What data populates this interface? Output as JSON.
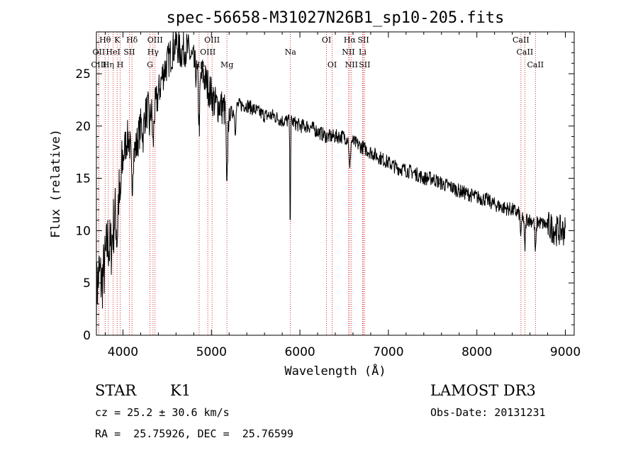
{
  "chart_data": {
    "type": "line",
    "title": "spec-56658-M31027N26B1_sp10-205.fits",
    "xlabel": "Wavelength (Å)",
    "ylabel": "Flux (relative)",
    "xlim": [
      3700,
      9100
    ],
    "ylim": [
      0,
      29
    ],
    "x_ticks": [
      4000,
      5000,
      6000,
      7000,
      8000,
      9000
    ],
    "x_tick_labels": [
      "4000",
      "5000",
      "6000",
      "7000",
      "8000",
      "9000"
    ],
    "y_ticks": [
      0,
      5,
      10,
      15,
      20,
      25
    ],
    "y_tick_labels": [
      "0",
      "5",
      "10",
      "15",
      "20",
      "25"
    ],
    "series": [
      {
        "name": "flux",
        "anchors": [
          [
            3700,
            4
          ],
          [
            3730,
            6
          ],
          [
            3760,
            5
          ],
          [
            3800,
            7
          ],
          [
            3830,
            9
          ],
          [
            3860,
            8
          ],
          [
            3900,
            11
          ],
          [
            3930,
            12
          ],
          [
            3960,
            14
          ],
          [
            3990,
            16
          ],
          [
            4020,
            18
          ],
          [
            4060,
            19
          ],
          [
            4100,
            17
          ],
          [
            4150,
            18
          ],
          [
            4200,
            20
          ],
          [
            4250,
            21
          ],
          [
            4300,
            22
          ],
          [
            4340,
            21
          ],
          [
            4400,
            23
          ],
          [
            4450,
            25
          ],
          [
            4500,
            26
          ],
          [
            4550,
            27
          ],
          [
            4600,
            28
          ],
          [
            4650,
            27
          ],
          [
            4700,
            27.5
          ],
          [
            4750,
            27
          ],
          [
            4800,
            26
          ],
          [
            4860,
            24
          ],
          [
            4900,
            25
          ],
          [
            4950,
            24
          ],
          [
            5000,
            23
          ],
          [
            5050,
            22
          ],
          [
            5100,
            22
          ],
          [
            5150,
            21.5
          ],
          [
            5200,
            21
          ],
          [
            5300,
            22
          ],
          [
            5400,
            22
          ],
          [
            5500,
            21.5
          ],
          [
            5600,
            21
          ],
          [
            5700,
            21
          ],
          [
            5800,
            20.5
          ],
          [
            5900,
            20.5
          ],
          [
            6000,
            20
          ],
          [
            6100,
            20
          ],
          [
            6200,
            19.5
          ],
          [
            6300,
            19
          ],
          [
            6400,
            19
          ],
          [
            6500,
            19
          ],
          [
            6600,
            18.5
          ],
          [
            6700,
            18
          ],
          [
            6800,
            17.5
          ],
          [
            6900,
            17
          ],
          [
            7000,
            16.5
          ],
          [
            7100,
            16
          ],
          [
            7200,
            15.8
          ],
          [
            7300,
            15.5
          ],
          [
            7400,
            15
          ],
          [
            7500,
            15
          ],
          [
            7600,
            14.5
          ],
          [
            7700,
            14.2
          ],
          [
            7800,
            13.8
          ],
          [
            7900,
            13.5
          ],
          [
            8000,
            13.2
          ],
          [
            8100,
            13
          ],
          [
            8200,
            12.5
          ],
          [
            8300,
            12.2
          ],
          [
            8400,
            12
          ],
          [
            8500,
            11.5
          ],
          [
            8600,
            11
          ],
          [
            8700,
            10.8
          ],
          [
            8800,
            10.5
          ],
          [
            8900,
            10
          ],
          [
            9000,
            10
          ]
        ],
        "absorption_dips": [
          [
            3934,
            3.0
          ],
          [
            3969,
            2.5
          ],
          [
            4102,
            3.0
          ],
          [
            4227,
            1.5
          ],
          [
            4300,
            2.0
          ],
          [
            4340,
            3.0
          ],
          [
            4861,
            4.0
          ],
          [
            5175,
            8.0
          ],
          [
            5270,
            2.0
          ],
          [
            5890,
            10.0
          ],
          [
            6563,
            3.0
          ],
          [
            8498,
            2.0
          ],
          [
            8542,
            3.0
          ],
          [
            8662,
            3.0
          ]
        ]
      }
    ],
    "spectral_lines": [
      {
        "label": "Hθ",
        "x": 3798,
        "row": 0
      },
      {
        "label": "K",
        "x": 3934,
        "row": 0
      },
      {
        "label": "Hδ",
        "x": 4102,
        "row": 0
      },
      {
        "label": "OIII",
        "x": 4363,
        "row": 0
      },
      {
        "label": "OIII",
        "x": 5007,
        "row": 0
      },
      {
        "label": "OI",
        "x": 6300,
        "row": 0
      },
      {
        "label": "Hα",
        "x": 6563,
        "row": 0
      },
      {
        "label": "SII",
        "x": 6717,
        "row": 0
      },
      {
        "label": "CaII",
        "x": 8498,
        "row": 0
      },
      {
        "label": "OII",
        "x": 3727,
        "row": 1
      },
      {
        "label": "HeI",
        "x": 3889,
        "row": 1
      },
      {
        "label": "SII",
        "x": 4072,
        "row": 1
      },
      {
        "label": "Hγ",
        "x": 4340,
        "row": 1
      },
      {
        "label": "OIII",
        "x": 4959,
        "row": 1
      },
      {
        "label": "Na",
        "x": 5893,
        "row": 1
      },
      {
        "label": "NII",
        "x": 6548,
        "row": 1
      },
      {
        "label": "Li",
        "x": 6708,
        "row": 1
      },
      {
        "label": "CaII",
        "x": 8542,
        "row": 1
      },
      {
        "label": "OIII",
        "x": 3727,
        "row": 2
      },
      {
        "label": "Hη",
        "x": 3835,
        "row": 2
      },
      {
        "label": "H",
        "x": 3969,
        "row": 2
      },
      {
        "label": "G",
        "x": 4305,
        "row": 2
      },
      {
        "label": "Hβ",
        "x": 4861,
        "row": 2
      },
      {
        "label": "Mg",
        "x": 5175,
        "row": 2
      },
      {
        "label": "OI",
        "x": 6364,
        "row": 2
      },
      {
        "label": "NII",
        "x": 6583,
        "row": 2
      },
      {
        "label": "SII",
        "x": 6731,
        "row": 2
      },
      {
        "label": "CaII",
        "x": 8662,
        "row": 2
      }
    ],
    "line_color": "#000000",
    "marker_color": "#cc0000"
  },
  "info": {
    "class": "STAR",
    "subclass": "K1",
    "survey": "LAMOST DR3",
    "cz": "cz = 25.2 ± 30.6 km/s",
    "obs_date": "Obs-Date: 20131231",
    "coords": "RA =  25.75926, DEC =  25.76599"
  }
}
